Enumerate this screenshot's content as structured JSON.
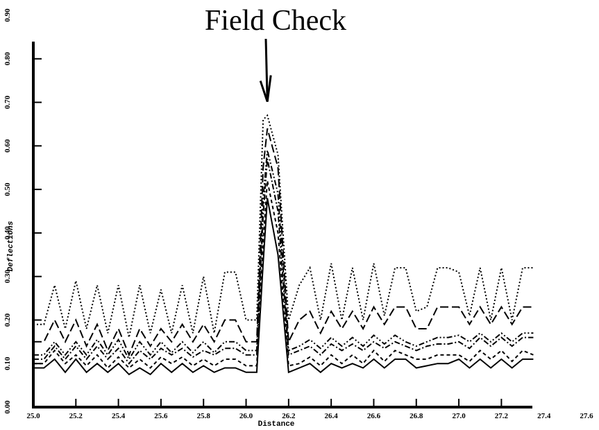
{
  "chart_data": {
    "type": "line",
    "title": "",
    "xlabel": "Distance",
    "ylabel": "Deflections",
    "xlim": [
      25.0,
      27.6
    ],
    "ylim": [
      0.0,
      0.9
    ],
    "x_ticks": [
      "25.0",
      "25.2",
      "25.4",
      "25.6",
      "25.8",
      "26.0",
      "26.2",
      "26.4",
      "26.6",
      "26.8",
      "27.0",
      "27.2",
      "27.4",
      "27.6"
    ],
    "y_ticks": [
      "0.00",
      "0.10",
      "0.20",
      "0.30",
      "0.40",
      "0.50",
      "0.60",
      "0.70",
      "0.80",
      "0.90"
    ],
    "annotation": {
      "text": "Field Check",
      "x": 26.1,
      "y": 0.7
    },
    "grid": false,
    "legend": "none",
    "x": [
      25.0,
      25.05,
      25.1,
      25.15,
      25.2,
      25.25,
      25.3,
      25.35,
      25.4,
      25.45,
      25.5,
      25.55,
      25.6,
      25.65,
      25.7,
      25.75,
      25.8,
      25.85,
      25.9,
      25.95,
      26.0,
      26.05,
      26.08,
      26.1,
      26.15,
      26.2,
      26.25,
      26.3,
      26.35,
      26.4,
      26.45,
      26.5,
      26.55,
      26.6,
      26.65,
      26.7,
      26.75,
      26.8,
      26.85,
      26.9,
      26.95,
      27.0,
      27.05,
      27.1,
      27.15,
      27.2,
      27.25,
      27.3,
      27.35
    ],
    "series": [
      {
        "style": "solid",
        "values": [
          0.09,
          0.09,
          0.11,
          0.08,
          0.11,
          0.08,
          0.1,
          0.08,
          0.1,
          0.075,
          0.09,
          0.075,
          0.1,
          0.08,
          0.1,
          0.08,
          0.095,
          0.08,
          0.09,
          0.09,
          0.08,
          0.08,
          0.33,
          0.48,
          0.35,
          0.08,
          0.09,
          0.1,
          0.08,
          0.1,
          0.09,
          0.1,
          0.09,
          0.11,
          0.09,
          0.11,
          0.11,
          0.09,
          0.095,
          0.1,
          0.1,
          0.11,
          0.09,
          0.11,
          0.09,
          0.11,
          0.09,
          0.11,
          0.11
        ]
      },
      {
        "style": "dashed-short",
        "values": [
          0.1,
          0.1,
          0.13,
          0.1,
          0.12,
          0.095,
          0.12,
          0.09,
          0.115,
          0.09,
          0.11,
          0.09,
          0.115,
          0.1,
          0.115,
          0.095,
          0.11,
          0.095,
          0.11,
          0.11,
          0.095,
          0.095,
          0.38,
          0.52,
          0.4,
          0.095,
          0.1,
          0.115,
          0.095,
          0.12,
          0.1,
          0.12,
          0.1,
          0.13,
          0.105,
          0.13,
          0.12,
          0.11,
          0.11,
          0.12,
          0.12,
          0.12,
          0.105,
          0.13,
          0.11,
          0.13,
          0.105,
          0.13,
          0.12
        ]
      },
      {
        "style": "dash-dot",
        "values": [
          0.11,
          0.11,
          0.14,
          0.11,
          0.14,
          0.11,
          0.14,
          0.11,
          0.135,
          0.1,
          0.13,
          0.11,
          0.135,
          0.12,
          0.135,
          0.115,
          0.13,
          0.12,
          0.135,
          0.135,
          0.12,
          0.12,
          0.44,
          0.57,
          0.45,
          0.12,
          0.13,
          0.14,
          0.12,
          0.145,
          0.13,
          0.145,
          0.13,
          0.15,
          0.135,
          0.15,
          0.14,
          0.13,
          0.14,
          0.145,
          0.145,
          0.15,
          0.135,
          0.16,
          0.14,
          0.16,
          0.14,
          0.16,
          0.16
        ]
      },
      {
        "style": "dash-dot-dot",
        "values": [
          0.12,
          0.12,
          0.15,
          0.12,
          0.15,
          0.12,
          0.155,
          0.12,
          0.155,
          0.11,
          0.15,
          0.12,
          0.15,
          0.125,
          0.15,
          0.125,
          0.15,
          0.125,
          0.15,
          0.15,
          0.13,
          0.13,
          0.48,
          0.59,
          0.49,
          0.13,
          0.14,
          0.155,
          0.135,
          0.16,
          0.14,
          0.16,
          0.14,
          0.165,
          0.145,
          0.165,
          0.15,
          0.14,
          0.15,
          0.16,
          0.16,
          0.165,
          0.15,
          0.17,
          0.15,
          0.17,
          0.15,
          0.17,
          0.17
        ]
      },
      {
        "style": "long-dash",
        "values": [
          0.15,
          0.15,
          0.2,
          0.15,
          0.2,
          0.14,
          0.19,
          0.13,
          0.18,
          0.12,
          0.18,
          0.14,
          0.18,
          0.15,
          0.19,
          0.15,
          0.19,
          0.15,
          0.2,
          0.2,
          0.15,
          0.15,
          0.55,
          0.64,
          0.55,
          0.15,
          0.2,
          0.22,
          0.17,
          0.22,
          0.18,
          0.22,
          0.18,
          0.23,
          0.19,
          0.23,
          0.23,
          0.18,
          0.18,
          0.23,
          0.23,
          0.23,
          0.19,
          0.23,
          0.19,
          0.23,
          0.19,
          0.23,
          0.23
        ]
      },
      {
        "style": "dotted",
        "values": [
          0.19,
          0.19,
          0.28,
          0.18,
          0.29,
          0.18,
          0.28,
          0.17,
          0.28,
          0.16,
          0.28,
          0.17,
          0.27,
          0.17,
          0.28,
          0.17,
          0.3,
          0.17,
          0.31,
          0.31,
          0.2,
          0.2,
          0.66,
          0.67,
          0.58,
          0.2,
          0.28,
          0.32,
          0.2,
          0.33,
          0.2,
          0.32,
          0.2,
          0.33,
          0.21,
          0.32,
          0.32,
          0.22,
          0.23,
          0.32,
          0.32,
          0.31,
          0.21,
          0.32,
          0.2,
          0.32,
          0.2,
          0.32,
          0.32
        ]
      }
    ]
  }
}
